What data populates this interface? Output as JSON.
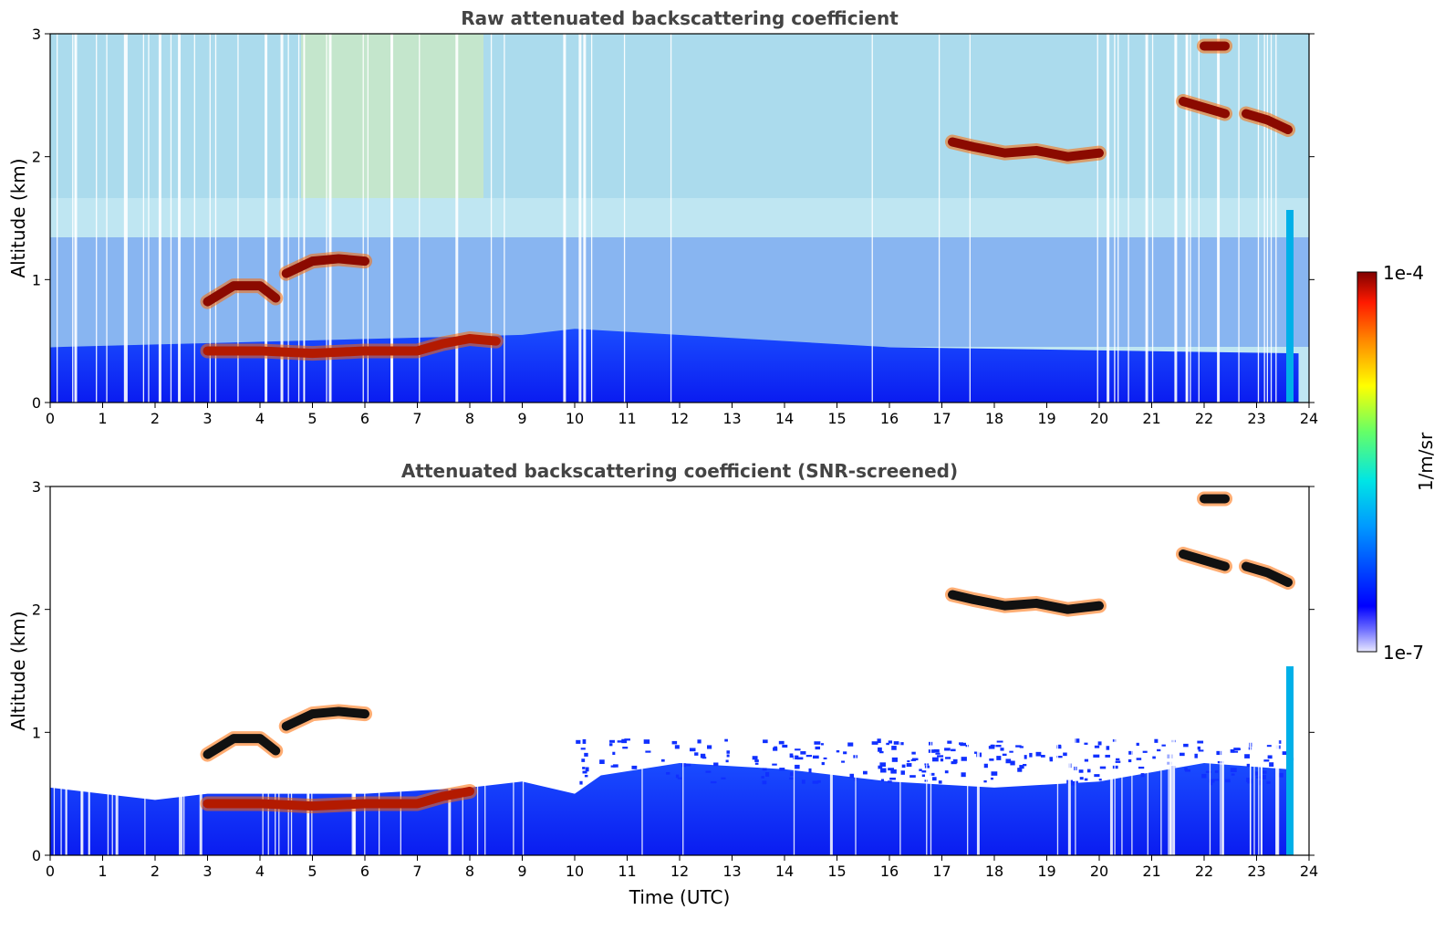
{
  "chart_data": [
    {
      "type": "heatmap",
      "title": "Raw attenuated backscattering coefficient",
      "ylabel": "Altitude (km)",
      "xlabel": "",
      "xlim": [
        0,
        24
      ],
      "ylim": [
        0,
        3
      ],
      "xticks": [
        "0",
        "1",
        "2",
        "3",
        "4",
        "5",
        "6",
        "7",
        "8",
        "9",
        "10",
        "11",
        "12",
        "13",
        "14",
        "15",
        "16",
        "17",
        "18",
        "19",
        "20",
        "21",
        "22",
        "23",
        "24"
      ],
      "yticks": [
        "0",
        "1",
        "2",
        "3"
      ],
      "features": [
        {
          "kind": "boundary_layer",
          "from_time": 0,
          "to_time": 23.8,
          "top_km": [
            [
              0,
              0.45
            ],
            [
              9,
              0.55
            ],
            [
              10,
              0.6
            ],
            [
              16,
              0.45
            ],
            [
              23.8,
              0.4
            ]
          ]
        },
        {
          "kind": "aerosol_layer",
          "points": [
            [
              3,
              0.42
            ],
            [
              4,
              0.42
            ],
            [
              5,
              0.4
            ],
            [
              6,
              0.42
            ],
            [
              7,
              0.42
            ],
            [
              7.5,
              0.48
            ],
            [
              8,
              0.52
            ],
            [
              8.5,
              0.5
            ]
          ]
        },
        {
          "kind": "cloud",
          "points": [
            [
              3,
              0.82
            ],
            [
              3.5,
              0.95
            ],
            [
              4,
              0.95
            ],
            [
              4.3,
              0.85
            ]
          ]
        },
        {
          "kind": "cloud",
          "points": [
            [
              4.5,
              1.05
            ],
            [
              5,
              1.15
            ],
            [
              5.5,
              1.17
            ],
            [
              6,
              1.15
            ]
          ]
        },
        {
          "kind": "cloud",
          "points": [
            [
              17.2,
              2.12
            ],
            [
              17.6,
              2.08
            ],
            [
              18.2,
              2.03
            ],
            [
              18.8,
              2.05
            ],
            [
              19.4,
              2.0
            ],
            [
              20,
              2.03
            ]
          ]
        },
        {
          "kind": "cloud",
          "points": [
            [
              21.6,
              2.45
            ],
            [
              22,
              2.4
            ],
            [
              22.4,
              2.35
            ]
          ]
        },
        {
          "kind": "cloud",
          "points": [
            [
              22.8,
              2.35
            ],
            [
              23.2,
              2.3
            ],
            [
              23.6,
              2.22
            ]
          ]
        },
        {
          "kind": "cloud",
          "points": [
            [
              22,
              2.9
            ],
            [
              22.4,
              2.9
            ]
          ]
        }
      ]
    },
    {
      "type": "heatmap",
      "title": "Attenuated backscattering coefficient (SNR-screened)",
      "ylabel": "Altitude (km)",
      "xlabel": "Time (UTC)",
      "xlim": [
        0,
        24
      ],
      "ylim": [
        0,
        3
      ],
      "xticks": [
        "0",
        "1",
        "2",
        "3",
        "4",
        "5",
        "6",
        "7",
        "8",
        "9",
        "10",
        "11",
        "12",
        "13",
        "14",
        "15",
        "16",
        "17",
        "18",
        "19",
        "20",
        "21",
        "22",
        "23",
        "24"
      ],
      "yticks": [
        "0",
        "1",
        "2",
        "3"
      ],
      "features": [
        {
          "kind": "boundary_layer",
          "top_km": [
            [
              0,
              0.55
            ],
            [
              2,
              0.45
            ],
            [
              3,
              0.5
            ],
            [
              6,
              0.5
            ],
            [
              8,
              0.55
            ],
            [
              9,
              0.6
            ],
            [
              10,
              0.5
            ],
            [
              10.5,
              0.65
            ],
            [
              12,
              0.75
            ],
            [
              14,
              0.7
            ],
            [
              16,
              0.6
            ],
            [
              18,
              0.55
            ],
            [
              20,
              0.6
            ],
            [
              22,
              0.75
            ],
            [
              23.6,
              0.7
            ]
          ]
        },
        {
          "kind": "aerosol_layer",
          "points": [
            [
              3,
              0.42
            ],
            [
              4,
              0.42
            ],
            [
              5,
              0.4
            ],
            [
              6,
              0.42
            ],
            [
              7,
              0.42
            ],
            [
              7.5,
              0.48
            ],
            [
              8,
              0.52
            ]
          ]
        },
        {
          "kind": "cloud",
          "points": [
            [
              3,
              0.82
            ],
            [
              3.5,
              0.95
            ],
            [
              4,
              0.95
            ],
            [
              4.3,
              0.85
            ]
          ]
        },
        {
          "kind": "cloud",
          "points": [
            [
              4.5,
              1.05
            ],
            [
              5,
              1.15
            ],
            [
              5.5,
              1.17
            ],
            [
              6,
              1.15
            ]
          ]
        },
        {
          "kind": "cloud",
          "points": [
            [
              17.2,
              2.12
            ],
            [
              17.6,
              2.08
            ],
            [
              18.2,
              2.03
            ],
            [
              18.8,
              2.05
            ],
            [
              19.4,
              2.0
            ],
            [
              20,
              2.03
            ]
          ]
        },
        {
          "kind": "cloud",
          "points": [
            [
              21.6,
              2.45
            ],
            [
              22,
              2.4
            ],
            [
              22.4,
              2.35
            ]
          ]
        },
        {
          "kind": "cloud",
          "points": [
            [
              22.8,
              2.35
            ],
            [
              23.2,
              2.3
            ],
            [
              23.6,
              2.22
            ]
          ]
        },
        {
          "kind": "cloud",
          "points": [
            [
              22,
              2.9
            ],
            [
              22.4,
              2.9
            ]
          ]
        }
      ]
    }
  ],
  "colorbar": {
    "label": "1/m/sr",
    "max_label": "1e-4",
    "min_label": "1e-7",
    "colormap": "jet",
    "colors": [
      "#e8e8ff",
      "#0000ff",
      "#0099ff",
      "#00e5e5",
      "#66ff66",
      "#ffff00",
      "#ff8800",
      "#ff1a00",
      "#800000"
    ]
  }
}
